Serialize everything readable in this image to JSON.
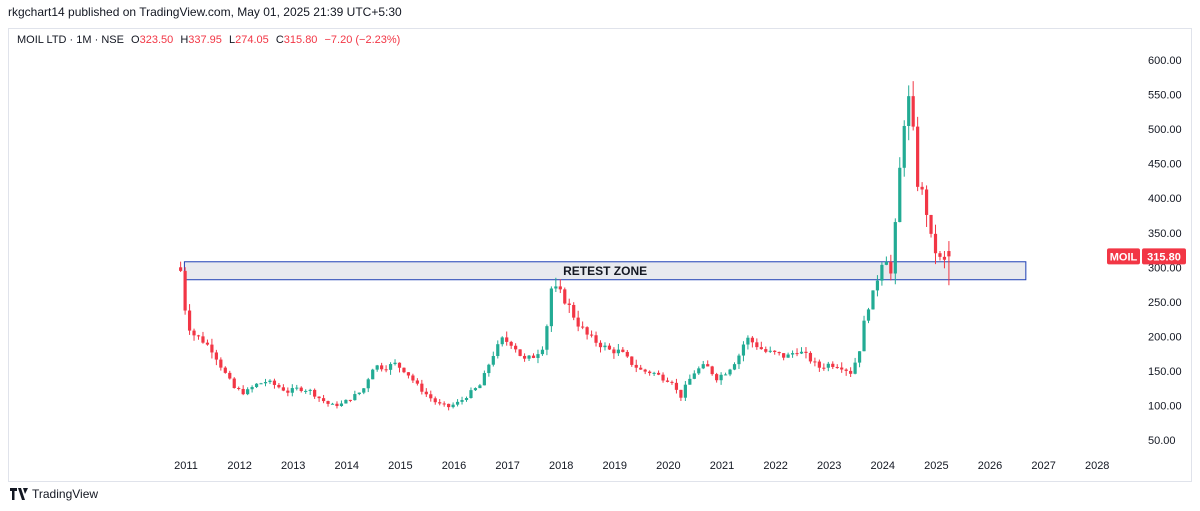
{
  "header": {
    "publisher": "rkgchart14 published on TradingView.com, May 01, 2025 21:39 UTC+5:30"
  },
  "legend": {
    "symbol": "MOIL LTD · 1M · NSE",
    "o_label": "O",
    "o_value": "323.50",
    "h_label": "H",
    "h_value": "337.95",
    "l_label": "L",
    "l_value": "274.05",
    "c_label": "C",
    "c_value": "315.80",
    "change": "−7.20 (−2.23%)"
  },
  "footer": {
    "brand": "TradingView"
  },
  "colors": {
    "up": "#22ab94",
    "down": "#f23645",
    "zone_fill": "#e8eaef",
    "zone_border": "#1e3fb5"
  },
  "chart_data": {
    "type": "candlestick",
    "symbol": "MOIL",
    "interval": "1M",
    "last_price": "315.80",
    "y_ticks": [
      "600.00",
      "550.00",
      "500.00",
      "450.00",
      "400.00",
      "350.00",
      "300.00",
      "250.00",
      "200.00",
      "150.00",
      "100.00",
      "50.00"
    ],
    "x_ticks": [
      "2011",
      "2012",
      "2013",
      "2014",
      "2015",
      "2016",
      "2017",
      "2018",
      "2019",
      "2020",
      "2021",
      "2022",
      "2023",
      "2024",
      "2025",
      "2026",
      "2027",
      "2028"
    ],
    "ylim": [
      20,
      625
    ],
    "xlim": [
      2010.15,
      2028.62
    ],
    "annotation": {
      "text": "RETEST ZONE",
      "y_low": 282,
      "y_high": 308,
      "x_start": 2010.0,
      "x_end": 2026.65
    },
    "close_path": [
      [
        2010.9,
        295
      ],
      [
        2011.0,
        230
      ],
      [
        2011.1,
        205
      ],
      [
        2011.3,
        195
      ],
      [
        2011.5,
        180
      ],
      [
        2011.7,
        150
      ],
      [
        2011.9,
        125
      ],
      [
        2012.1,
        118
      ],
      [
        2012.3,
        130
      ],
      [
        2012.5,
        135
      ],
      [
        2012.7,
        128
      ],
      [
        2012.9,
        120
      ],
      [
        2013.1,
        125
      ],
      [
        2013.3,
        122
      ],
      [
        2013.5,
        110
      ],
      [
        2013.7,
        100
      ],
      [
        2013.9,
        102
      ],
      [
        2014.1,
        112
      ],
      [
        2014.3,
        122
      ],
      [
        2014.5,
        158
      ],
      [
        2014.7,
        155
      ],
      [
        2014.9,
        160
      ],
      [
        2015.1,
        150
      ],
      [
        2015.3,
        130
      ],
      [
        2015.5,
        115
      ],
      [
        2015.7,
        102
      ],
      [
        2015.9,
        98
      ],
      [
        2016.1,
        105
      ],
      [
        2016.3,
        118
      ],
      [
        2016.5,
        130
      ],
      [
        2016.7,
        170
      ],
      [
        2016.9,
        195
      ],
      [
        2017.1,
        190
      ],
      [
        2017.3,
        165
      ],
      [
        2017.5,
        172
      ],
      [
        2017.7,
        190
      ],
      [
        2017.8,
        270
      ],
      [
        2017.95,
        265
      ],
      [
        2018.1,
        250
      ],
      [
        2018.3,
        220
      ],
      [
        2018.5,
        200
      ],
      [
        2018.7,
        190
      ],
      [
        2018.9,
        180
      ],
      [
        2019.1,
        178
      ],
      [
        2019.3,
        162
      ],
      [
        2019.5,
        150
      ],
      [
        2019.7,
        148
      ],
      [
        2019.9,
        140
      ],
      [
        2020.1,
        135
      ],
      [
        2020.2,
        108
      ],
      [
        2020.35,
        132
      ],
      [
        2020.5,
        150
      ],
      [
        2020.7,
        158
      ],
      [
        2020.9,
        140
      ],
      [
        2021.1,
        150
      ],
      [
        2021.3,
        170
      ],
      [
        2021.45,
        198
      ],
      [
        2021.6,
        190
      ],
      [
        2021.8,
        178
      ],
      [
        2022.0,
        175
      ],
      [
        2022.2,
        170
      ],
      [
        2022.4,
        180
      ],
      [
        2022.6,
        170
      ],
      [
        2022.8,
        155
      ],
      [
        2023.0,
        160
      ],
      [
        2023.2,
        158
      ],
      [
        2023.4,
        148
      ],
      [
        2023.55,
        175
      ],
      [
        2023.7,
        240
      ],
      [
        2023.85,
        265
      ],
      [
        2023.95,
        305
      ],
      [
        2024.05,
        320
      ],
      [
        2024.15,
        290
      ],
      [
        2024.25,
        370
      ],
      [
        2024.35,
        475
      ],
      [
        2024.45,
        555
      ],
      [
        2024.55,
        510
      ],
      [
        2024.62,
        430
      ],
      [
        2024.72,
        410
      ],
      [
        2024.82,
        380
      ],
      [
        2024.92,
        330
      ],
      [
        2025.02,
        320
      ],
      [
        2025.12,
        300
      ],
      [
        2025.22,
        325
      ],
      [
        2025.28,
        315.8
      ]
    ]
  }
}
